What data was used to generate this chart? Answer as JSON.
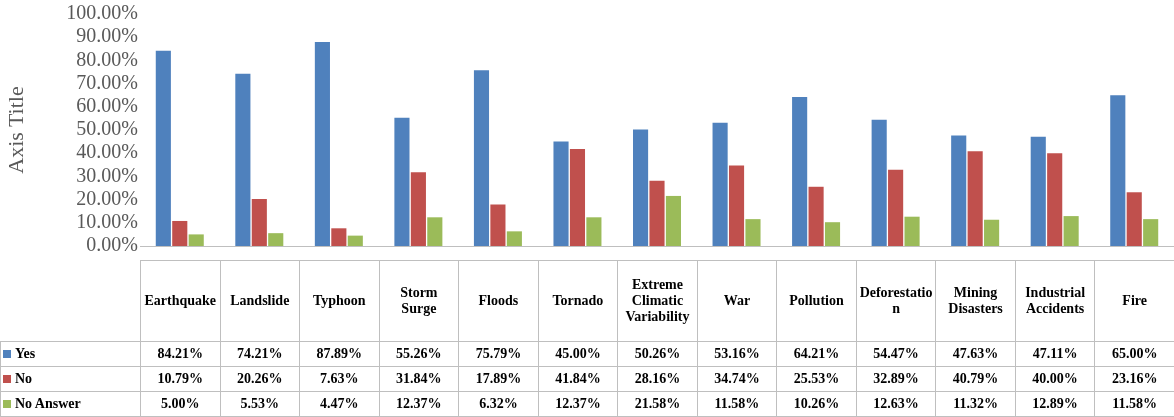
{
  "chart_data": {
    "type": "bar",
    "ylabel": "Axis Title",
    "categories": [
      "Earthquake",
      "Landslide",
      "Typhoon",
      "Storm Surge",
      "Floods",
      "Tornado",
      "Extreme Climatic Variability",
      "War",
      "Pollution",
      "Deforestation",
      "Mining Disasters",
      "Industrial Accidents",
      "Fire"
    ],
    "series": [
      {
        "name": "Yes",
        "color": "#4f81bd",
        "values": [
          84.21,
          74.21,
          87.89,
          55.26,
          75.79,
          45.0,
          50.26,
          53.16,
          64.21,
          54.47,
          47.63,
          47.11,
          65.0
        ],
        "value_labels": [
          "84.21%",
          "74.21%",
          "87.89%",
          "55.26%",
          "75.79%",
          "45.00%",
          "50.26%",
          "53.16%",
          "64.21%",
          "54.47%",
          "47.63%",
          "47.11%",
          "65.00%"
        ]
      },
      {
        "name": "No",
        "color": "#c0504d",
        "values": [
          10.79,
          20.26,
          7.63,
          31.84,
          17.89,
          41.84,
          28.16,
          34.74,
          25.53,
          32.89,
          40.79,
          40.0,
          23.16
        ],
        "value_labels": [
          "10.79%",
          "20.26%",
          "7.63%",
          "31.84%",
          "17.89%",
          "41.84%",
          "28.16%",
          "34.74%",
          "25.53%",
          "32.89%",
          "40.79%",
          "40.00%",
          "23.16%"
        ]
      },
      {
        "name": "No Answer",
        "color": "#9bbb59",
        "values": [
          5.0,
          5.53,
          4.47,
          12.37,
          6.32,
          12.37,
          21.58,
          11.58,
          10.26,
          12.63,
          11.32,
          12.89,
          11.58
        ],
        "value_labels": [
          "5.00%",
          "5.53%",
          "4.47%",
          "12.37%",
          "6.32%",
          "12.37%",
          "21.58%",
          "11.58%",
          "10.26%",
          "12.63%",
          "11.32%",
          "12.89%",
          "11.58%"
        ]
      }
    ],
    "ylim": [
      0,
      100
    ],
    "yticks": [
      {
        "value": 0,
        "label": "0.00%"
      },
      {
        "value": 10,
        "label": "10.00%"
      },
      {
        "value": 20,
        "label": "20.00%"
      },
      {
        "value": 30,
        "label": "30.00%"
      },
      {
        "value": 40,
        "label": "40.00%"
      },
      {
        "value": 50,
        "label": "50.00%"
      },
      {
        "value": 60,
        "label": "60.00%"
      },
      {
        "value": 70,
        "label": "70.00%"
      },
      {
        "value": 80,
        "label": "80.00%"
      },
      {
        "value": 90,
        "label": "90.00%"
      },
      {
        "value": 100,
        "label": "100.00%"
      }
    ],
    "grid": false,
    "legend": "bottom"
  }
}
